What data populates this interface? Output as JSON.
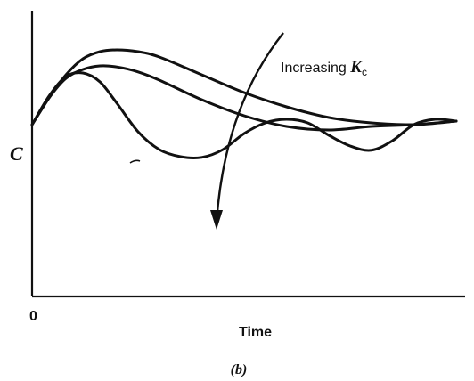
{
  "figure": {
    "caption": "(b)"
  },
  "chart_data": {
    "type": "line",
    "title": "",
    "xlabel": "Time",
    "ylabel": "C",
    "x_origin_label": "0",
    "annotation": {
      "text": "Increasing ",
      "symbol": "K",
      "subscript": "c"
    },
    "grid": false,
    "legend": "none",
    "xlim": [
      0,
      10
    ],
    "ylim": [
      -3.5,
      2.5
    ],
    "series": [
      {
        "x": [
          0,
          0.4,
          0.8,
          1.2,
          1.6,
          2,
          2.5,
          3,
          4,
          5,
          6,
          7,
          8,
          9,
          10
        ],
        "y": [
          0,
          0.75,
          1.4,
          1.85,
          2.05,
          2.1,
          2.05,
          1.9,
          1.4,
          0.9,
          0.5,
          0.2,
          0.05,
          0,
          0.1
        ]
      },
      {
        "x": [
          0,
          0.4,
          0.8,
          1.2,
          1.6,
          2,
          2.5,
          3,
          4,
          5,
          6,
          7,
          8,
          9,
          10
        ],
        "y": [
          0,
          0.75,
          1.3,
          1.55,
          1.65,
          1.62,
          1.48,
          1.25,
          0.7,
          0.25,
          -0.05,
          -0.15,
          -0.05,
          0,
          0.1
        ]
      },
      {
        "x": [
          0,
          0.4,
          0.8,
          1.2,
          1.6,
          2,
          2.5,
          3,
          3.5,
          4,
          4.5,
          5,
          5.5,
          6,
          6.5,
          7,
          7.5,
          8,
          8.5,
          9,
          9.5,
          10
        ],
        "y": [
          0,
          0.8,
          1.35,
          1.45,
          1.2,
          0.6,
          -0.2,
          -0.7,
          -0.9,
          -0.92,
          -0.7,
          -0.25,
          0.05,
          0.15,
          0.05,
          -0.3,
          -0.6,
          -0.72,
          -0.45,
          0,
          0.15,
          0.1
        ]
      }
    ]
  }
}
